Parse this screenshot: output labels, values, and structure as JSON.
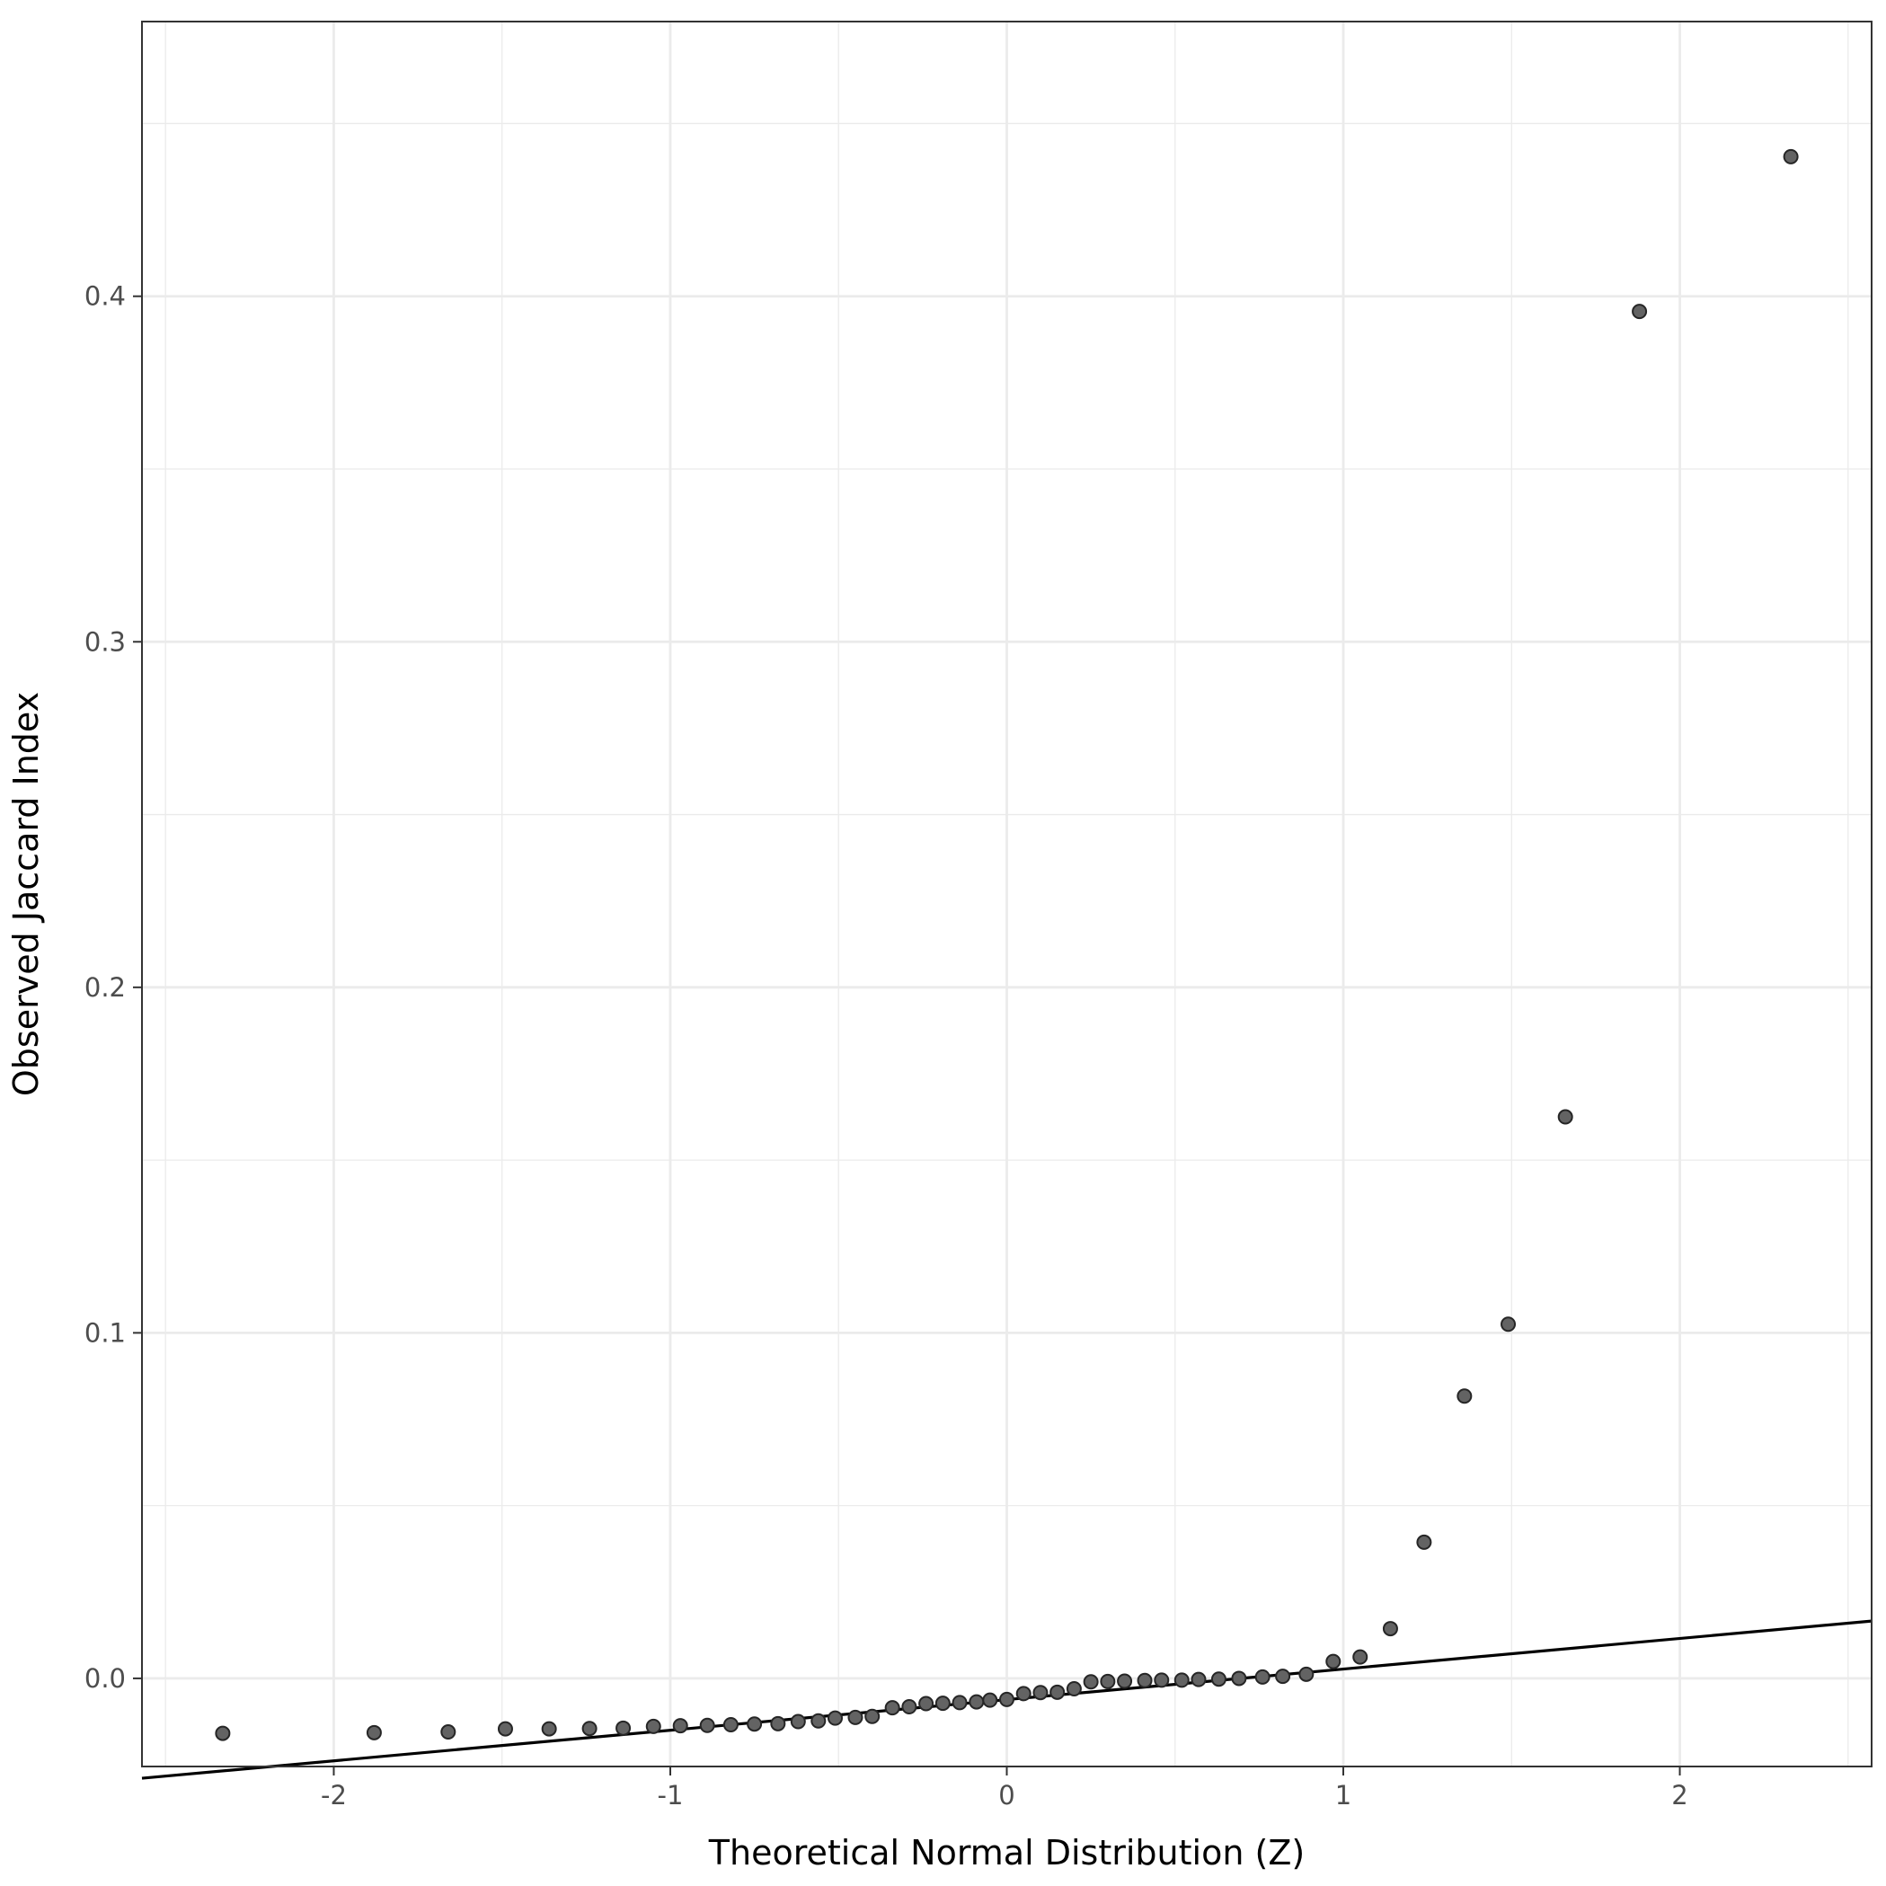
{
  "chart_data": {
    "type": "scatter",
    "title": "",
    "xlabel": "Theoretical Normal Distribution (Z)",
    "ylabel": "Observed Jaccard Index",
    "xlim": [
      -2.57,
      2.57
    ],
    "ylim": [
      -0.0255,
      0.4795
    ],
    "x_ticks": [
      {
        "value": -2,
        "label": "-2"
      },
      {
        "value": -1,
        "label": "-1"
      },
      {
        "value": 0,
        "label": "0"
      },
      {
        "value": 1,
        "label": "1"
      },
      {
        "value": 2,
        "label": "2"
      }
    ],
    "y_ticks": [
      {
        "value": 0.0,
        "label": "0.0"
      },
      {
        "value": 0.1,
        "label": "0.1"
      },
      {
        "value": 0.2,
        "label": "0.2"
      },
      {
        "value": 0.3,
        "label": "0.3"
      },
      {
        "value": 0.4,
        "label": "0.4"
      }
    ],
    "grid": true,
    "point_color": "#636363",
    "point_stroke": "#262626",
    "line_color": "#000000",
    "reference_line": {
      "x": [
        -2.57,
        2.57
      ],
      "y": [
        -0.0289,
        0.0166
      ]
    },
    "points": [
      {
        "x": -2.33,
        "y": -0.0159
      },
      {
        "x": -1.88,
        "y": -0.0157
      },
      {
        "x": -1.66,
        "y": -0.0155
      },
      {
        "x": -1.49,
        "y": -0.0146
      },
      {
        "x": -1.36,
        "y": -0.0146
      },
      {
        "x": -1.24,
        "y": -0.0145
      },
      {
        "x": -1.14,
        "y": -0.0144
      },
      {
        "x": -1.05,
        "y": -0.0139
      },
      {
        "x": -0.97,
        "y": -0.0137
      },
      {
        "x": -0.89,
        "y": -0.0136
      },
      {
        "x": -0.82,
        "y": -0.0134
      },
      {
        "x": -0.75,
        "y": -0.0132
      },
      {
        "x": -0.68,
        "y": -0.0131
      },
      {
        "x": -0.62,
        "y": -0.0125
      },
      {
        "x": -0.56,
        "y": -0.0123
      },
      {
        "x": -0.51,
        "y": -0.0115
      },
      {
        "x": -0.45,
        "y": -0.0113
      },
      {
        "x": -0.4,
        "y": -0.011
      },
      {
        "x": -0.34,
        "y": -0.0085
      },
      {
        "x": -0.29,
        "y": -0.0082
      },
      {
        "x": -0.24,
        "y": -0.0073
      },
      {
        "x": -0.19,
        "y": -0.0072
      },
      {
        "x": -0.14,
        "y": -0.007
      },
      {
        "x": -0.09,
        "y": -0.0068
      },
      {
        "x": -0.05,
        "y": -0.0063
      },
      {
        "x": 0.0,
        "y": -0.0061
      },
      {
        "x": 0.05,
        "y": -0.0044
      },
      {
        "x": 0.1,
        "y": -0.0041
      },
      {
        "x": 0.15,
        "y": -0.004
      },
      {
        "x": 0.2,
        "y": -0.003
      },
      {
        "x": 0.25,
        "y": -0.001
      },
      {
        "x": 0.3,
        "y": -0.0009
      },
      {
        "x": 0.35,
        "y": -0.0008
      },
      {
        "x": 0.41,
        "y": -0.0006
      },
      {
        "x": 0.46,
        "y": -0.0005
      },
      {
        "x": 0.52,
        "y": -0.0005
      },
      {
        "x": 0.57,
        "y": -0.0003
      },
      {
        "x": 0.63,
        "y": -0.0002
      },
      {
        "x": 0.69,
        "y": 0.0
      },
      {
        "x": 0.76,
        "y": 0.0004
      },
      {
        "x": 0.82,
        "y": 0.0006
      },
      {
        "x": 0.89,
        "y": 0.0012
      },
      {
        "x": 0.97,
        "y": 0.0049
      },
      {
        "x": 1.05,
        "y": 0.0062
      },
      {
        "x": 1.14,
        "y": 0.0144
      },
      {
        "x": 1.24,
        "y": 0.0394
      },
      {
        "x": 1.36,
        "y": 0.0817
      },
      {
        "x": 1.49,
        "y": 0.1025
      },
      {
        "x": 1.66,
        "y": 0.1625
      },
      {
        "x": 1.88,
        "y": 0.3956
      },
      {
        "x": 2.33,
        "y": 0.4404
      }
    ]
  }
}
